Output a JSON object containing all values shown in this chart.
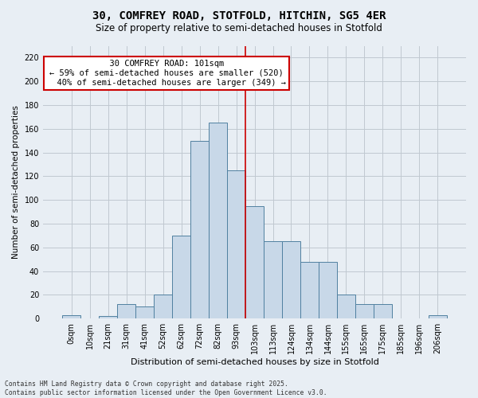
{
  "title1": "30, COMFREY ROAD, STOTFOLD, HITCHIN, SG5 4ER",
  "title2": "Size of property relative to semi-detached houses in Stotfold",
  "xlabel": "Distribution of semi-detached houses by size in Stotfold",
  "ylabel": "Number of semi-detached properties",
  "categories": [
    "0sqm",
    "10sqm",
    "21sqm",
    "31sqm",
    "41sqm",
    "52sqm",
    "62sqm",
    "72sqm",
    "82sqm",
    "93sqm",
    "103sqm",
    "113sqm",
    "124sqm",
    "134sqm",
    "144sqm",
    "155sqm",
    "165sqm",
    "175sqm",
    "185sqm",
    "196sqm",
    "206sqm"
  ],
  "values": [
    3,
    0,
    2,
    12,
    10,
    20,
    70,
    150,
    165,
    125,
    95,
    65,
    65,
    48,
    48,
    20,
    12,
    12,
    0,
    0,
    3
  ],
  "bar_color": "#c8d8e8",
  "bar_edge_color": "#5080a0",
  "grid_color": "#c0c8d0",
  "vline_color": "#cc0000",
  "vline_x_index": 10,
  "annotation_text": "  30 COMFREY ROAD: 101sqm  \n← 59% of semi-detached houses are smaller (520)\n  40% of semi-detached houses are larger (349) →",
  "annotation_box_color": "#ffffff",
  "annotation_box_edge": "#cc0000",
  "ylim": [
    0,
    230
  ],
  "yticks": [
    0,
    20,
    40,
    60,
    80,
    100,
    120,
    140,
    160,
    180,
    200,
    220
  ],
  "background_color": "#e8eef4",
  "footer_text": "Contains HM Land Registry data © Crown copyright and database right 2025.\nContains public sector information licensed under the Open Government Licence v3.0.",
  "title1_fontsize": 10,
  "title2_fontsize": 8.5,
  "xlabel_fontsize": 8,
  "ylabel_fontsize": 7.5,
  "tick_fontsize": 7,
  "annotation_fontsize": 7.5,
  "footer_fontsize": 5.8
}
